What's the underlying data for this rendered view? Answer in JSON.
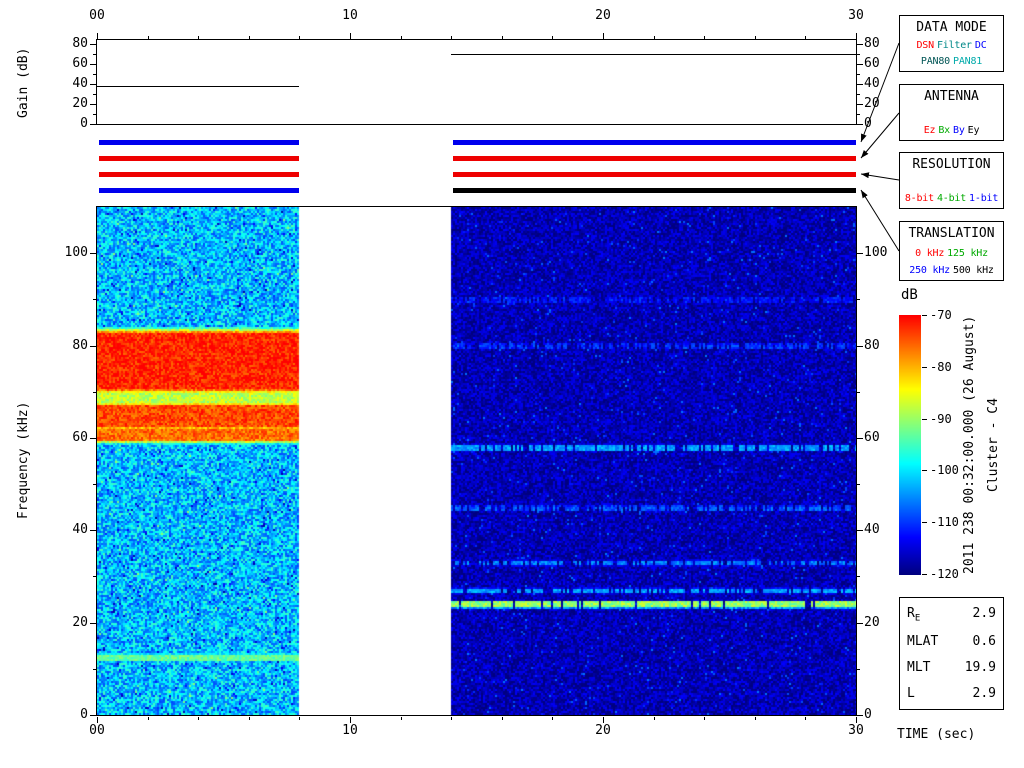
{
  "title_block": {
    "date_line": "2011 238 00:32:00.000 (26 August)",
    "spacecraft": "Cluster - C4"
  },
  "time_axis": {
    "label": "TIME (sec)",
    "t_min": 0,
    "t_max": 30,
    "ticks": [
      0,
      10,
      20,
      30
    ],
    "tick_labels": [
      "00",
      "10",
      "20",
      "30"
    ],
    "minor_step": 2
  },
  "status_bars": {
    "rows": [
      {
        "name": "data-mode-bar",
        "legend": "DATA MODE",
        "segments": [
          {
            "t_range": [
              0,
              8
            ],
            "color": "#0000ee"
          },
          {
            "t_range": [
              14,
              30
            ],
            "color": "#0000ee"
          }
        ]
      },
      {
        "name": "antenna-bar",
        "legend": "ANTENNA",
        "segments": [
          {
            "t_range": [
              0,
              8
            ],
            "color": "#ee0000"
          },
          {
            "t_range": [
              14,
              30
            ],
            "color": "#ee0000"
          }
        ]
      },
      {
        "name": "resolution-bar",
        "legend": "RESOLUTION",
        "segments": [
          {
            "t_range": [
              0,
              8
            ],
            "color": "#ee0000"
          },
          {
            "t_range": [
              14,
              30
            ],
            "color": "#ee0000"
          }
        ]
      },
      {
        "name": "translation-bar",
        "legend": "TRANSLATION",
        "segments": [
          {
            "t_range": [
              0,
              8
            ],
            "color": "#0000ee"
          },
          {
            "t_range": [
              14,
              30
            ],
            "color": "#000000"
          }
        ]
      }
    ]
  },
  "legend_boxes": [
    {
      "title": "DATA MODE",
      "rows": [
        [
          {
            "text": "DSN",
            "color": "#ff0000"
          },
          {
            "text": "Filter",
            "color": "#008888"
          },
          {
            "text": "DC",
            "color": "#0000ff"
          }
        ],
        [
          {
            "text": "PAN80",
            "color": "#005555"
          },
          {
            "text": "PAN81",
            "color": "#00aaaa"
          }
        ]
      ]
    },
    {
      "title": "ANTENNA",
      "rows": [
        [
          {
            "text": "Ez",
            "color": "#ff0000"
          },
          {
            "text": "Bx",
            "color": "#00aa00"
          },
          {
            "text": "By",
            "color": "#0000ff"
          },
          {
            "text": "Ey",
            "color": "#000000"
          }
        ]
      ]
    },
    {
      "title": "RESOLUTION",
      "rows": [
        [
          {
            "text": "8-bit",
            "color": "#ff0000"
          },
          {
            "text": "4-bit",
            "color": "#00aa00"
          },
          {
            "text": "1-bit",
            "color": "#0000ff"
          }
        ]
      ]
    },
    {
      "title": "TRANSLATION",
      "rows": [
        [
          {
            "text": "0 kHz",
            "color": "#ff0000"
          },
          {
            "text": "125 kHz",
            "color": "#00aa00"
          }
        ],
        [
          {
            "text": "250 kHz",
            "color": "#0000ff"
          },
          {
            "text": "500 kHz",
            "color": "#000000"
          }
        ]
      ]
    }
  ],
  "stats_box": {
    "rows": [
      {
        "label": "R",
        "sub": "E",
        "value": "2.9"
      },
      {
        "label": "MLAT",
        "value": "0.6"
      },
      {
        "label": "MLT",
        "value": "19.9"
      },
      {
        "label": "L",
        "value": "2.9"
      }
    ]
  },
  "chart_data": [
    {
      "type": "line",
      "name": "receiver-gain-vs-time",
      "ylabel": "Gain (dB)",
      "ylim": [
        0,
        80
      ],
      "yticks": [
        0,
        20,
        40,
        60,
        80
      ],
      "minor_yticks": [
        10,
        30,
        50,
        70
      ],
      "xlim": [
        0,
        30
      ],
      "series": [
        {
          "name": "gain",
          "segments": [
            {
              "t_range": [
                0,
                8
              ],
              "gain_db": 38
            },
            {
              "t_range": [
                14,
                30
              ],
              "gain_db": 70
            }
          ]
        }
      ]
    },
    {
      "type": "heatmap",
      "name": "wbd-frequency-time-spectrogram",
      "xlabel": "TIME (sec)",
      "ylabel": "Frequency (kHz)",
      "xlim": [
        0,
        30
      ],
      "ylim": [
        0,
        110
      ],
      "xticks": [
        0,
        10,
        20,
        30
      ],
      "xtick_labels": [
        "00",
        "10",
        "20",
        "30"
      ],
      "yticks": [
        0,
        20,
        40,
        60,
        80,
        100
      ],
      "minor_yticks": [
        10,
        30,
        50,
        70,
        90,
        110
      ],
      "colorbar": {
        "label": "dB",
        "min": -120,
        "max": -70,
        "ticks": [
          -70,
          -80,
          -90,
          -100,
          -110,
          -120
        ],
        "colormap": "jet"
      },
      "segments": [
        {
          "t_range": [
            0,
            8
          ],
          "background_db": -102,
          "noise_db": 7,
          "dark_speck_prob": 0.05,
          "dark_speck_db": -9,
          "bright_speck_prob": 0.02,
          "bright_speck_db": 5,
          "bands": [
            {
              "f_range": [
                70.8,
                82.8
              ],
              "db": -72,
              "noise_db": 4,
              "edge": 1.5
            },
            {
              "f_range": [
                67.5,
                70.2
              ],
              "db": -88,
              "noise_db": 4,
              "edge": 0.8
            },
            {
              "f_range": [
                62.8,
                67.2
              ],
              "db": -74,
              "noise_db": 4,
              "edge": 1.0
            },
            {
              "f_range": [
                59.8,
                62.2
              ],
              "db": -76,
              "noise_db": 4,
              "edge": 1.0
            },
            {
              "f_range": [
                12.1,
                13.1
              ],
              "db": -93,
              "noise_db": 3,
              "edge": 0.4
            }
          ]
        },
        {
          "t_range": [
            14,
            30
          ],
          "background_db": -117,
          "noise_db": 4,
          "dark_speck_prob": 0.05,
          "dark_speck_db": -4,
          "bright_speck_prob": 0.03,
          "bright_speck_db": 7,
          "bands": [
            {
              "f_range": [
                23.6,
                24.7
              ],
              "db": -90,
              "noise_db": 4,
              "edge": 0.4,
              "gap": 0.1
            },
            {
              "f_range": [
                26.7,
                27.5
              ],
              "db": -104,
              "noise_db": 3,
              "edge": 0.3,
              "gap": 0.3
            },
            {
              "f_range": [
                32.7,
                33.5
              ],
              "db": -106,
              "noise_db": 3,
              "edge": 0.3,
              "gap": 0.35
            },
            {
              "f_range": [
                44.6,
                45.4
              ],
              "db": -108,
              "noise_db": 3,
              "edge": 0.3,
              "gap": 0.4
            },
            {
              "f_range": [
                57.6,
                58.6
              ],
              "db": -104,
              "noise_db": 3,
              "edge": 0.3,
              "gap": 0.25
            },
            {
              "f_range": [
                79.6,
                80.5
              ],
              "db": -110,
              "noise_db": 3,
              "edge": 0.3,
              "gap": 0.4
            },
            {
              "f_range": [
                89.6,
                90.6
              ],
              "db": -112,
              "noise_db": 3,
              "edge": 0.3,
              "gap": 0.35
            }
          ]
        }
      ]
    }
  ]
}
